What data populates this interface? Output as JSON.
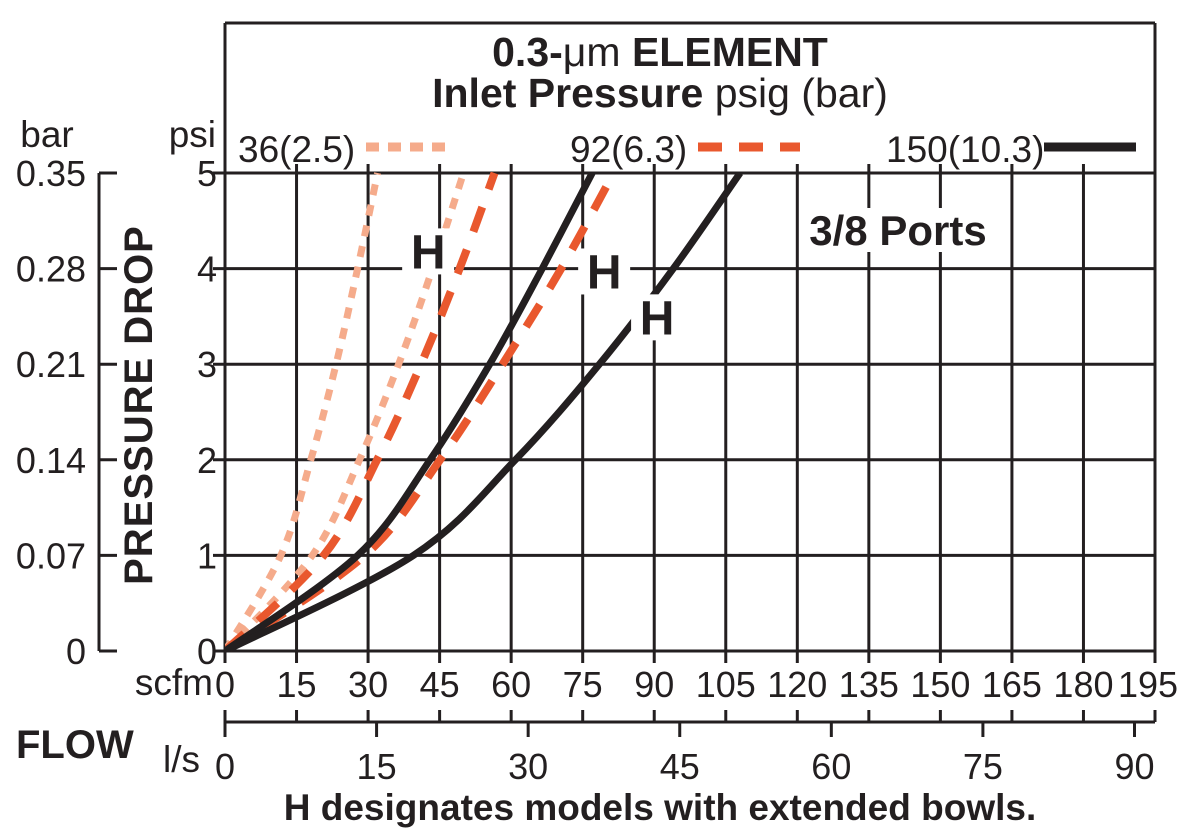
{
  "colors": {
    "ink": "#231F20",
    "pink": "#F5AB8B",
    "orange": "#E9582E",
    "background": "#FFFFFF"
  },
  "header": {
    "title_prefix": "0.3-",
    "title_mu": "μm",
    "title_suffix": " ELEMENT",
    "subtitle_bold": "Inlet Pressure",
    "subtitle_rest": " psig (bar)"
  },
  "legend": [
    {
      "label": "36(2.5)",
      "color": "#F5AB8B",
      "style": "dotted"
    },
    {
      "label": "92(6.3)",
      "color": "#E9582E",
      "style": "dashed"
    },
    {
      "label": "150(10.3)",
      "color": "#231F20",
      "style": "solid"
    }
  ],
  "annotation": {
    "ports_label": "3/8 Ports"
  },
  "footnote": "H designates models with extended bowls.",
  "axes": {
    "y_label": "PRESSURE DROP",
    "y_unit_primary": "bar",
    "y_unit_secondary": "psi",
    "x_label": "FLOW",
    "x_unit_primary": "scfm",
    "x_unit_secondary": "l/s"
  },
  "chart_data": {
    "type": "line",
    "title": "0.3-μm ELEMENT",
    "subtitle": "Inlet Pressure psig (bar)",
    "xlabel": "FLOW",
    "ylabel": "PRESSURE DROP",
    "grid": true,
    "x_scales": {
      "scfm": {
        "range": [
          0,
          195
        ],
        "ticks": [
          0,
          15,
          30,
          45,
          60,
          75,
          90,
          105,
          120,
          135,
          150,
          165,
          180,
          195
        ]
      },
      "l_per_s": {
        "range": [
          0,
          92
        ],
        "ticks": [
          0,
          15,
          30,
          45,
          60,
          75,
          90
        ],
        "scfm_per_unit": 2.11888
      }
    },
    "y_scales": {
      "psi": {
        "range": [
          0,
          5
        ],
        "ticks": [
          0,
          1,
          2,
          3,
          4,
          5
        ]
      },
      "bar": {
        "tick_labels": [
          "0",
          "0.07",
          "0.14",
          "0.21",
          "0.28",
          "0.35"
        ]
      }
    },
    "series": [
      {
        "name": "36(2.5)",
        "inlet_pressure_psig": 36,
        "inlet_pressure_bar": 2.5,
        "extended_bowl": false,
        "line_style": "dotted",
        "color": "#F5AB8B",
        "psi": [
          0,
          1,
          2,
          3,
          4,
          5
        ],
        "scfm": [
          0,
          11.7,
          18.0,
          23.3,
          27.8,
          32.0
        ]
      },
      {
        "name": "36(2.5) H",
        "inlet_pressure_psig": 36,
        "inlet_pressure_bar": 2.5,
        "extended_bowl": true,
        "line_style": "dotted",
        "color": "#F5AB8B",
        "psi": [
          0,
          1,
          2,
          3,
          4,
          5
        ],
        "scfm": [
          0,
          18.3,
          28.2,
          36.4,
          43.5,
          50.0
        ]
      },
      {
        "name": "92(6.3)",
        "inlet_pressure_psig": 92,
        "inlet_pressure_bar": 6.3,
        "extended_bowl": false,
        "line_style": "dashed",
        "color": "#E9582E",
        "psi": [
          0,
          1,
          2,
          3,
          4,
          5
        ],
        "scfm": [
          0,
          20.7,
          31.9,
          41.1,
          49.2,
          56.5
        ]
      },
      {
        "name": "92(6.3) H",
        "inlet_pressure_psig": 92,
        "inlet_pressure_bar": 6.3,
        "extended_bowl": true,
        "line_style": "dashed",
        "color": "#E9582E",
        "psi": [
          0,
          1,
          2,
          3,
          4,
          5
        ],
        "scfm": [
          0,
          29.3,
          45.1,
          58.2,
          70.5,
          81.5
        ]
      },
      {
        "name": "150(10.3)",
        "inlet_pressure_psig": 150,
        "inlet_pressure_bar": 10.3,
        "extended_bowl": false,
        "line_style": "solid",
        "color": "#231F20",
        "psi": [
          0,
          1,
          2,
          3,
          4,
          5
        ],
        "scfm": [
          0,
          27.8,
          43.0,
          55.5,
          66.5,
          77.0
        ]
      },
      {
        "name": "150(10.3) H",
        "inlet_pressure_psig": 150,
        "inlet_pressure_bar": 10.3,
        "extended_bowl": true,
        "line_style": "solid",
        "color": "#231F20",
        "psi": [
          0,
          1,
          2,
          3,
          4,
          5
        ],
        "scfm": [
          0,
          39.5,
          60.9,
          78.5,
          94.0,
          108.0
        ]
      }
    ],
    "h_labels": [
      {
        "text": "H",
        "scfm": 42.6,
        "psi": 4.18
      },
      {
        "text": "H",
        "scfm": 79.5,
        "psi": 3.97
      },
      {
        "text": "H",
        "scfm": 90.6,
        "psi": 3.49
      }
    ]
  }
}
